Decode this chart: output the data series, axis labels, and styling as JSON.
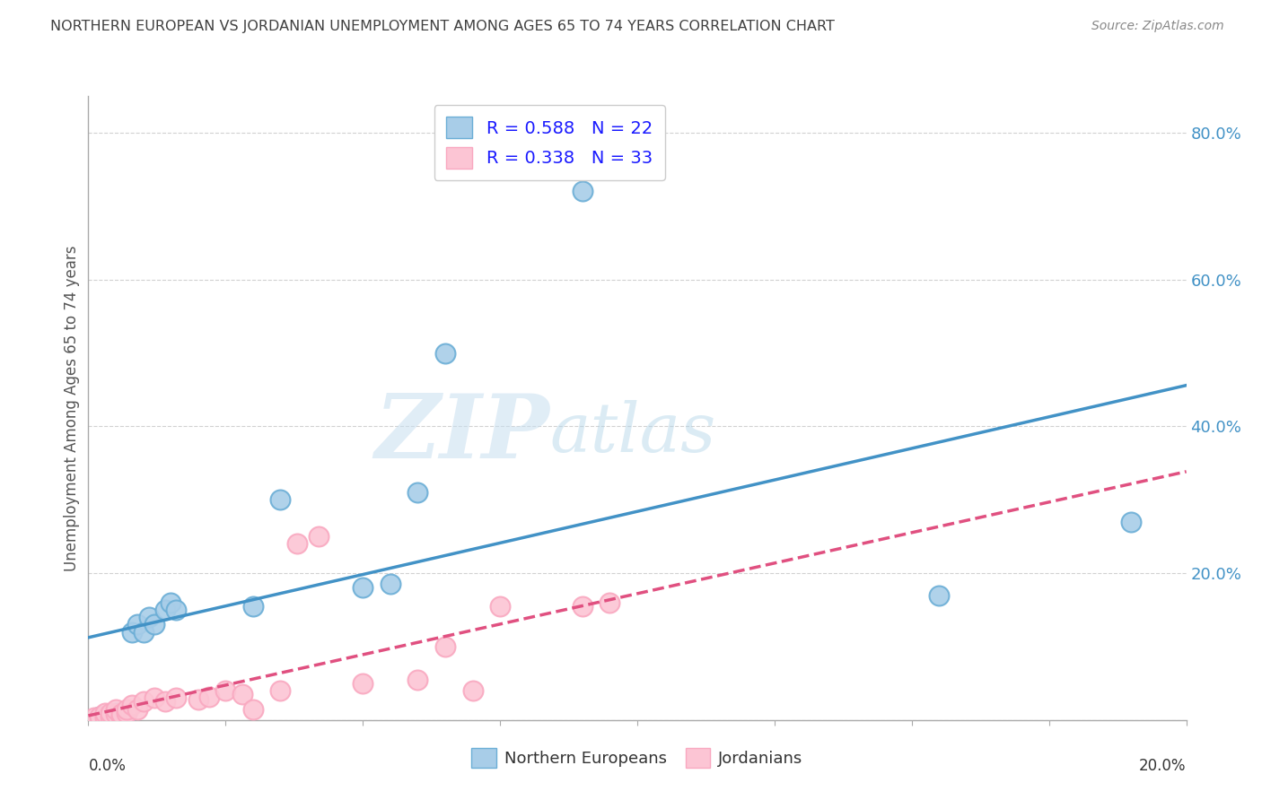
{
  "title": "NORTHERN EUROPEAN VS JORDANIAN UNEMPLOYMENT AMONG AGES 65 TO 74 YEARS CORRELATION CHART",
  "source": "Source: ZipAtlas.com",
  "ylabel": "Unemployment Among Ages 65 to 74 years",
  "xlim": [
    0.0,
    0.2
  ],
  "ylim": [
    0.0,
    0.85
  ],
  "yticks": [
    0.0,
    0.2,
    0.4,
    0.6,
    0.8
  ],
  "ytick_labels": [
    "",
    "20.0%",
    "40.0%",
    "60.0%",
    "80.0%"
  ],
  "legend_r1": "R = 0.588",
  "legend_n1": "N = 22",
  "legend_r2": "R = 0.338",
  "legend_n2": "N = 33",
  "blue_scatter_color": "#a8cde8",
  "blue_edge_color": "#6baed6",
  "pink_scatter_color": "#fcc5d4",
  "pink_edge_color": "#f9a8c0",
  "line_blue": "#4292c6",
  "line_pink": "#e05080",
  "watermark_zip": "ZIP",
  "watermark_atlas": "atlas",
  "ne_x": [
    0.002,
    0.004,
    0.005,
    0.006,
    0.007,
    0.008,
    0.009,
    0.01,
    0.011,
    0.012,
    0.014,
    0.015,
    0.016,
    0.03,
    0.035,
    0.05,
    0.055,
    0.06,
    0.065,
    0.09,
    0.155,
    0.19
  ],
  "ne_y": [
    0.005,
    0.005,
    0.01,
    0.01,
    0.01,
    0.12,
    0.13,
    0.12,
    0.14,
    0.13,
    0.15,
    0.16,
    0.15,
    0.155,
    0.3,
    0.18,
    0.185,
    0.31,
    0.5,
    0.72,
    0.17,
    0.27
  ],
  "jo_x": [
    0.001,
    0.002,
    0.003,
    0.003,
    0.004,
    0.004,
    0.005,
    0.005,
    0.006,
    0.006,
    0.007,
    0.007,
    0.008,
    0.009,
    0.01,
    0.012,
    0.014,
    0.016,
    0.02,
    0.022,
    0.025,
    0.028,
    0.03,
    0.035,
    0.038,
    0.042,
    0.05,
    0.06,
    0.065,
    0.07,
    0.075,
    0.09,
    0.095
  ],
  "jo_y": [
    0.003,
    0.005,
    0.003,
    0.01,
    0.005,
    0.01,
    0.008,
    0.015,
    0.005,
    0.008,
    0.01,
    0.015,
    0.02,
    0.015,
    0.025,
    0.03,
    0.025,
    0.03,
    0.028,
    0.032,
    0.04,
    0.035,
    0.015,
    0.04,
    0.24,
    0.25,
    0.05,
    0.055,
    0.1,
    0.04,
    0.155,
    0.155,
    0.16
  ],
  "grid_color": "#cccccc",
  "bg_color": "#ffffff",
  "title_color": "#404040",
  "axis_label_color": "#555555",
  "tick_color_right": "#4292c6",
  "source_color": "#888888"
}
